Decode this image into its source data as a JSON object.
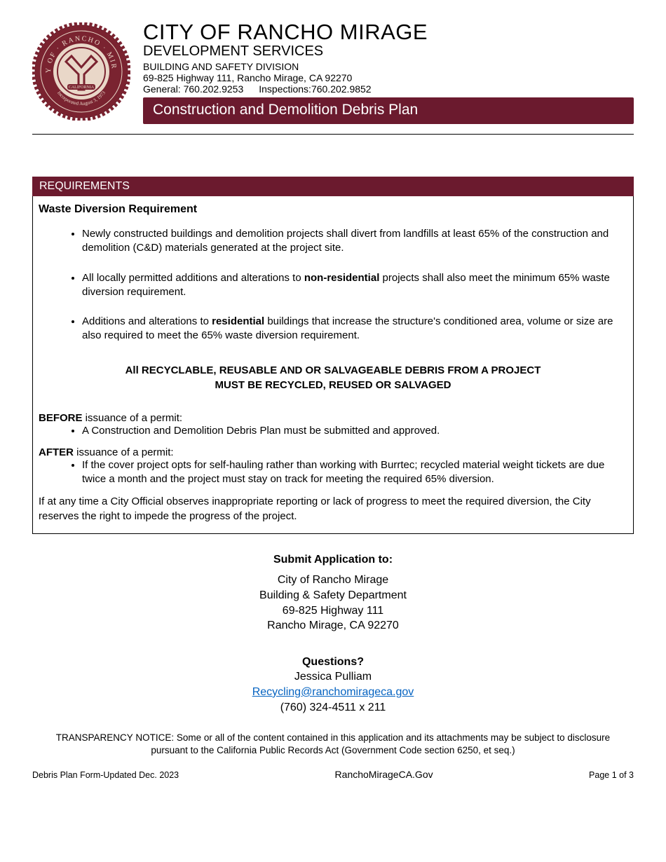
{
  "colors": {
    "brand": "#6b1a2e",
    "seal_ring": "#7a2330",
    "seal_inner": "#e9d7c8",
    "link": "#0563c1",
    "text": "#000000",
    "background": "#ffffff"
  },
  "header": {
    "city_title": "CITY OF RANCHO MIRAGE",
    "department": "DEVELOPMENT SERVICES",
    "division": "BUILDING AND SAFETY DIVISION",
    "address": "69-825 Highway 111, Rancho Mirage, CA 92270",
    "phone_general_label": "General: ",
    "phone_general": "760.202.9253",
    "phone_inspections_label": "Inspections:",
    "phone_inspections": "760.202.9852",
    "banner": "Construction and Demolition Debris Plan",
    "seal_text_top": "CITY OF",
    "seal_text_left": "RANCHO",
    "seal_text_right": "MIRAGE",
    "seal_text_state": "CALIFORNIA",
    "seal_text_date": "Incorporated August 3, 1973"
  },
  "requirements": {
    "section_title": "REQUIREMENTS",
    "subheading": "Waste Diversion Requirement",
    "bullets": [
      "Newly constructed buildings and demolition projects shall divert from landfills at least 65% of the construction and demolition (C&D) materials generated at the project site.",
      "All locally permitted additions and alterations to __BOLD__non-residential__/BOLD__ projects shall also meet the minimum 65% waste diversion requirement.",
      "Additions and alterations to __BOLD__residential__/BOLD__ buildings that increase the structure's conditioned area, volume or size are also required to meet the 65% waste diversion requirement."
    ],
    "center_line1": "All RECYCLABLE, REUSABLE AND OR SALVAGEABLE DEBRIS FROM A PROJECT",
    "center_line2": "MUST BE RECYCLED, REUSED OR SALVAGED",
    "before_label_bold": "BEFORE",
    "before_label_rest": " issuance of a permit:",
    "before_bullet": "A Construction and Demolition Debris Plan must be submitted and approved.",
    "after_label_bold": "AFTER",
    "after_label_rest": " issuance of a permit:",
    "after_bullet": "If the cover project opts for self-hauling rather than working with Burrtec; recycled material weight tickets are due twice a month and the project must stay on track for meeting the required 65% diversion.",
    "warning": "If at any time a City Official observes inappropriate reporting or lack of progress to meet the required diversion, the City reserves the right to impede the progress of the project."
  },
  "submit": {
    "heading": "Submit Application to:",
    "line1": "City of Rancho Mirage",
    "line2": "Building & Safety Department",
    "line3": "69-825 Highway 111",
    "line4": "Rancho Mirage, CA 92270"
  },
  "questions": {
    "heading": "Questions?",
    "name": "Jessica Pulliam",
    "email": "Recycling@ranchomirageca.gov",
    "phone": "(760) 324-4511 x 211"
  },
  "transparency": "TRANSPARENCY NOTICE: Some or all of the content contained in this application and its attachments may be subject to disclosure pursuant to the California Public Records Act (Government Code section 6250, et seq.)",
  "footer": {
    "left": "Debris Plan Form-Updated Dec. 2023",
    "center": "RanchoMirageCA.Gov",
    "right": "Page 1 of 3"
  }
}
